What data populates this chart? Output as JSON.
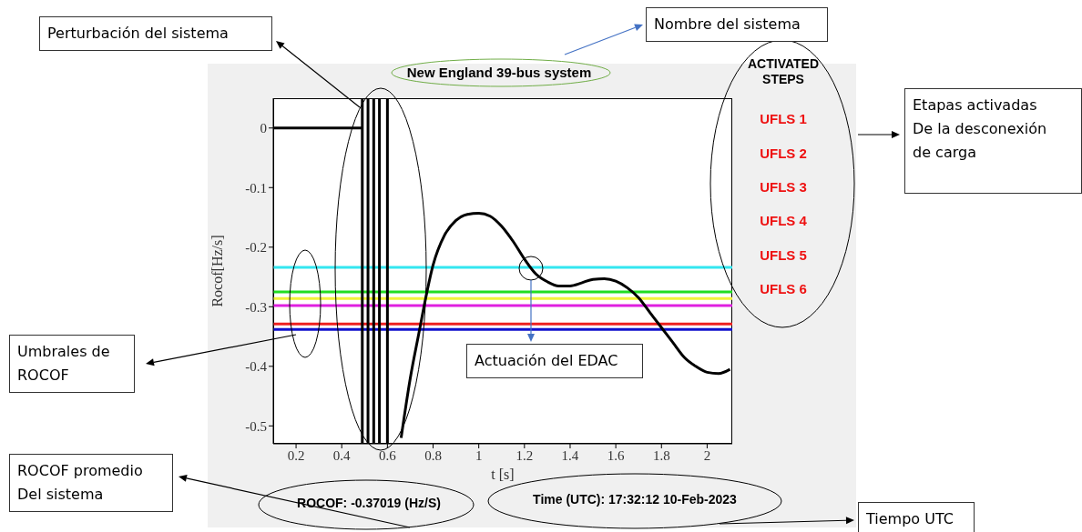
{
  "chart_data": {
    "type": "line",
    "title": "New England 39-bus system",
    "xlabel": "t [s]",
    "ylabel": "Rocof[Hz/s]",
    "x": [
      0.1,
      0.49,
      null,
      0.66,
      0.7,
      0.74,
      0.76,
      0.8,
      0.85,
      0.9,
      0.95,
      1.0,
      1.05,
      1.1,
      1.15,
      1.2,
      1.25,
      1.3,
      1.35,
      1.4,
      1.45,
      1.5,
      1.55,
      1.6,
      1.65,
      1.7,
      1.75,
      1.8,
      1.85,
      1.9,
      1.95,
      2.0,
      2.05,
      2.1
    ],
    "series": [
      {
        "color": "#000000",
        "values": [
          0,
          0,
          null,
          -0.52,
          -0.42,
          -0.34,
          -0.3,
          -0.23,
          -0.18,
          -0.155,
          -0.145,
          -0.143,
          -0.148,
          -0.165,
          -0.19,
          -0.22,
          -0.245,
          -0.258,
          -0.265,
          -0.265,
          -0.26,
          -0.254,
          -0.253,
          -0.257,
          -0.268,
          -0.285,
          -0.31,
          -0.335,
          -0.36,
          -0.385,
          -0.4,
          -0.41,
          -0.412,
          -0.405
        ]
      }
    ],
    "xlim": [
      0.1,
      2.11
    ],
    "ylim": [
      -0.53,
      0.05
    ],
    "xticks": [
      0.2,
      0.4,
      0.6,
      0.8,
      1,
      1.2,
      1.4,
      1.6,
      1.8,
      2
    ],
    "yticks": [
      -0.5,
      -0.4,
      -0.3,
      -0.2,
      -0.1,
      0
    ],
    "ref_lines": [
      {
        "axis": "y",
        "value": -0.234,
        "color": "#33e6f0"
      },
      {
        "axis": "y",
        "value": -0.275,
        "color": "#22dd22"
      },
      {
        "axis": "y",
        "value": -0.286,
        "color": "#f2f23a"
      },
      {
        "axis": "y",
        "value": -0.298,
        "color": "#e020e0"
      },
      {
        "axis": "y",
        "value": -0.329,
        "color": "#ee2020"
      },
      {
        "axis": "y",
        "value": -0.338,
        "color": "#1010cc"
      },
      {
        "axis": "x",
        "value": 0.49,
        "color": "#000000"
      },
      {
        "axis": "x",
        "value": 0.515,
        "color": "#000000"
      },
      {
        "axis": "x",
        "value": 0.54,
        "color": "#000000"
      },
      {
        "axis": "x",
        "value": 0.565,
        "color": "#000000"
      },
      {
        "axis": "x",
        "value": 0.6,
        "color": "#000000"
      }
    ],
    "annotations": [
      "ACTIVATED\nSTEPS",
      "UFLS 1",
      "UFLS 2",
      "UFLS 3",
      "UFLS 4",
      "UFLS 5",
      "UFLS 6",
      "ROCOF:  -0.37019 (Hz/S)",
      "Time (UTC): 17:32:12 10-Feb-2023",
      "Perturbación del sistema",
      "Nombre del sistema",
      "Etapas activadas\nDe la desconexión\nde carga",
      "Umbrales de\nROCOF",
      "Actuación del EDAC",
      "ROCOF promedio\nDel sistema",
      "Tiempo UTC"
    ]
  }
}
